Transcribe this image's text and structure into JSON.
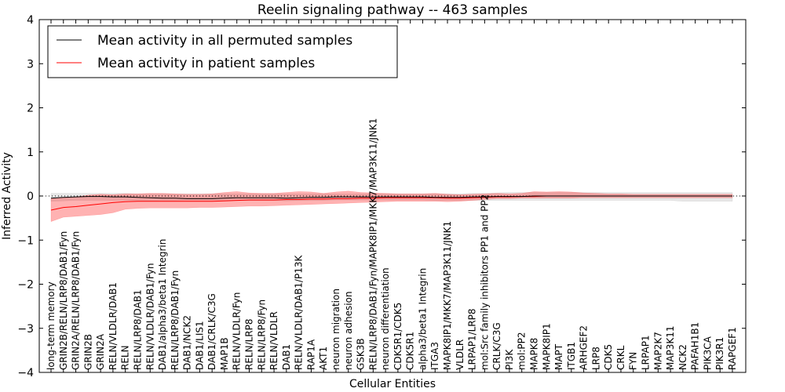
{
  "chart_data": {
    "type": "line",
    "title": "Reelin signaling pathway -- 463 samples",
    "xlabel": "Cellular Entities",
    "ylabel": "Inferred Activity",
    "ylim": [
      -4,
      4
    ],
    "yticks": [
      -4,
      -3,
      -2,
      -1,
      0,
      1,
      2,
      3,
      4
    ],
    "ytick_labels": [
      "−4",
      "−3",
      "−2",
      "−1",
      "0",
      "1",
      "2",
      "3",
      "4"
    ],
    "legend": {
      "position": "top-left",
      "entries": [
        {
          "label": "Mean activity in all permuted samples",
          "color": "#000000"
        },
        {
          "label": "Mean activity in patient samples",
          "color": "#ff0000"
        }
      ]
    },
    "reference_line": {
      "y": 0,
      "style": "dotted"
    },
    "categories": [
      "long-term memory",
      "GRIN2B/RELN/LRP8/DAB1/Fyn",
      "GRIN2A/RELN/LRP8/DAB1/Fyn",
      "GRIN2B",
      "GRIN2A",
      "RELN/VLDLR/DAB1",
      "RELN",
      "RELN/LRP8/DAB1",
      "RELN/VLDLR/DAB1/Fyn",
      "DAB1/alpha3/beta1 Integrin",
      "RELN/LRP8/DAB1/Fyn",
      "DAB1/NCK2",
      "DAB1/LIS1",
      "DAB1/CRLK/C3G",
      "MAP1B",
      "RELN/VLDLR/Fyn",
      "RELN/LRP8",
      "RELN/LRP8/Fyn",
      "RELN/VLDLR",
      "DAB1",
      "RELN/VLDLR/DAB1/P13K",
      "RAP1A",
      "AKT1",
      "neuron migration",
      "neuron adhesion",
      "GSK3B",
      "RELN/LRP8/DAB1/Fyn/MAPK8IP1/MKK7/MAP3K11/JNK1",
      "neuron differentiation",
      "CDK5R1/CDK5",
      "CDK5R1",
      "alpha3/beta1 Integrin",
      "ITGA3",
      "MAPK8IP1/MKK7/MAP3K11/JNK1",
      "VLDLR",
      "LRPAP1/LRP8",
      "mol:Src family inhibitors PP1 and PP2",
      "CRLK/C3G",
      "PI3K",
      "mol:PP2",
      "MAPK8",
      "MAPK8IP1",
      "MAPT",
      "ITGB1",
      "ARHGEF2",
      "LRP8",
      "CDK5",
      "CRKL",
      "FYN",
      "LRPAP1",
      "MAP2K7",
      "MAP3K11",
      "NCK2",
      "PAFAH1B1",
      "PIK3CA",
      "PIK3R1",
      "RAPGEF1"
    ],
    "series": [
      {
        "name": "Mean activity in all permuted samples",
        "color": "#000000",
        "values": [
          -0.05,
          -0.03,
          -0.02,
          -0.01,
          -0.01,
          -0.02,
          -0.02,
          -0.03,
          -0.04,
          -0.05,
          -0.05,
          -0.06,
          -0.06,
          -0.06,
          -0.05,
          -0.04,
          -0.04,
          -0.04,
          -0.04,
          -0.05,
          -0.04,
          -0.03,
          -0.03,
          -0.02,
          -0.02,
          -0.02,
          -0.02,
          -0.02,
          -0.02,
          -0.02,
          -0.02,
          -0.03,
          -0.03,
          -0.03,
          -0.02,
          -0.02,
          -0.01,
          -0.01,
          -0.01,
          0.0,
          0.0,
          0.0,
          0.0,
          0.0,
          0.0,
          0.0,
          0.0,
          0.0,
          0.0,
          0.0,
          0.0,
          0.0,
          0.0,
          0.0,
          0.0,
          0.0
        ],
        "band_lower": [
          -0.12,
          -0.11,
          -0.1,
          -0.1,
          -0.1,
          -0.1,
          -0.1,
          -0.11,
          -0.11,
          -0.12,
          -0.12,
          -0.12,
          -0.12,
          -0.12,
          -0.11,
          -0.1,
          -0.1,
          -0.1,
          -0.1,
          -0.11,
          -0.1,
          -0.1,
          -0.1,
          -0.09,
          -0.09,
          -0.09,
          -0.09,
          -0.09,
          -0.09,
          -0.09,
          -0.09,
          -0.1,
          -0.1,
          -0.1,
          -0.1,
          -0.1,
          -0.1,
          -0.1,
          -0.1,
          -0.1,
          -0.1,
          -0.1,
          -0.1,
          -0.1,
          -0.1,
          -0.1,
          -0.1,
          -0.1,
          -0.1,
          -0.1,
          -0.1,
          -0.12,
          -0.12,
          -0.12,
          -0.12,
          -0.12
        ],
        "band_upper": [
          0.06,
          0.06,
          0.06,
          0.06,
          0.06,
          0.06,
          0.06,
          0.05,
          0.05,
          0.05,
          0.05,
          0.05,
          0.05,
          0.05,
          0.05,
          0.05,
          0.05,
          0.05,
          0.05,
          0.05,
          0.05,
          0.05,
          0.05,
          0.05,
          0.05,
          0.05,
          0.05,
          0.05,
          0.05,
          0.05,
          0.05,
          0.05,
          0.05,
          0.05,
          0.06,
          0.06,
          0.07,
          0.08,
          0.08,
          0.08,
          0.08,
          0.08,
          0.08,
          0.08,
          0.08,
          0.08,
          0.08,
          0.08,
          0.08,
          0.08,
          0.08,
          0.08,
          0.08,
          0.08,
          0.08,
          0.08
        ]
      },
      {
        "name": "Mean activity in patient samples",
        "color": "#ff0000",
        "values": [
          -0.32,
          -0.26,
          -0.24,
          -0.21,
          -0.18,
          -0.15,
          -0.13,
          -0.12,
          -0.12,
          -0.12,
          -0.12,
          -0.12,
          -0.12,
          -0.12,
          -0.11,
          -0.1,
          -0.09,
          -0.09,
          -0.09,
          -0.08,
          -0.08,
          -0.07,
          -0.07,
          -0.06,
          -0.06,
          -0.05,
          -0.05,
          -0.04,
          -0.04,
          -0.04,
          -0.04,
          -0.04,
          -0.05,
          -0.05,
          -0.04,
          -0.03,
          -0.02,
          -0.02,
          -0.01,
          -0.01,
          0.0,
          0.0,
          0.0,
          0.0,
          0.0,
          0.0,
          0.0,
          0.0,
          0.0,
          0.0,
          0.0,
          0.0,
          0.0,
          0.0,
          0.0,
          0.0
        ],
        "band_lower": [
          -0.58,
          -0.48,
          -0.46,
          -0.44,
          -0.42,
          -0.38,
          -0.3,
          -0.28,
          -0.27,
          -0.27,
          -0.27,
          -0.27,
          -0.26,
          -0.26,
          -0.25,
          -0.24,
          -0.23,
          -0.23,
          -0.22,
          -0.21,
          -0.2,
          -0.19,
          -0.18,
          -0.17,
          -0.16,
          -0.15,
          -0.14,
          -0.13,
          -0.12,
          -0.12,
          -0.12,
          -0.12,
          -0.13,
          -0.12,
          -0.1,
          -0.08,
          -0.06,
          -0.06,
          -0.05,
          -0.05,
          -0.05,
          -0.05,
          -0.05,
          -0.04,
          -0.04,
          -0.04,
          -0.04,
          -0.04,
          -0.04,
          -0.04,
          -0.04,
          -0.04,
          -0.04,
          -0.04,
          -0.04,
          -0.04
        ],
        "band_upper": [
          -0.06,
          -0.04,
          -0.02,
          0.02,
          0.04,
          0.03,
          0.05,
          0.05,
          0.06,
          0.06,
          0.05,
          0.04,
          0.04,
          0.05,
          0.08,
          0.1,
          0.07,
          0.06,
          0.06,
          0.08,
          0.1,
          0.09,
          0.06,
          0.09,
          0.11,
          0.08,
          0.07,
          0.06,
          0.05,
          0.05,
          0.05,
          0.06,
          0.04,
          0.03,
          0.04,
          0.05,
          0.06,
          0.05,
          0.06,
          0.1,
          0.09,
          0.1,
          0.09,
          0.07,
          0.06,
          0.05,
          0.05,
          0.04,
          0.04,
          0.04,
          0.04,
          0.04,
          0.04,
          0.04,
          0.04,
          0.04
        ]
      }
    ]
  }
}
